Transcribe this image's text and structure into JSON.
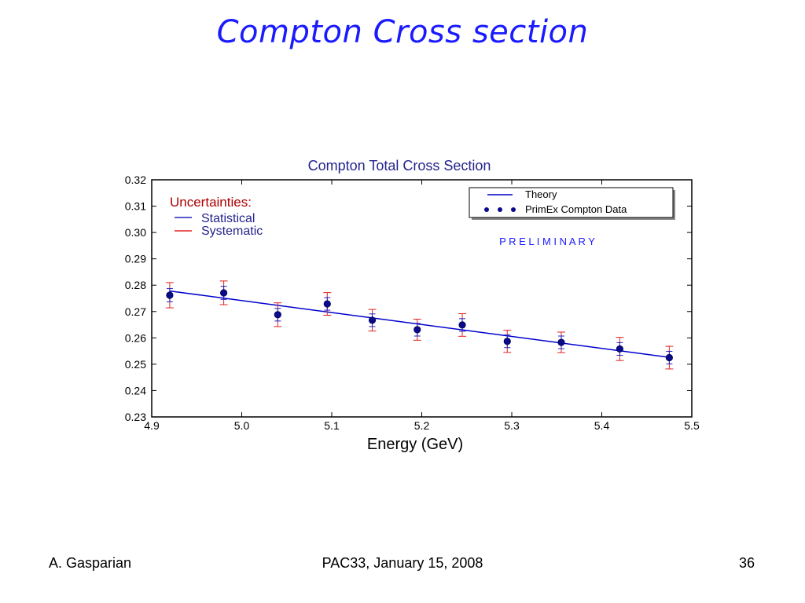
{
  "slide": {
    "title": "Compton Cross section",
    "footer_left": "A. Gasparian",
    "footer_center": "PAC33, January 15, 2008",
    "footer_right": "36"
  },
  "colors": {
    "title": "#1a1aff",
    "theory_line": "#0000cc",
    "data_marker": "#0a0a8c",
    "statistical": "#2020c0",
    "systematic": "#e02020",
    "chart_title": "#23238e",
    "preliminary": "#1a1aff",
    "uncertainties_label": "#b00000"
  },
  "chart_data": {
    "type": "scatter",
    "title": "Compton Total Cross Section",
    "xlabel": "Energy (GeV)",
    "ylabel": "",
    "xlim": [
      4.9,
      5.5
    ],
    "ylim": [
      0.23,
      0.32
    ],
    "xticks": [
      "4.9",
      "5.0",
      "5.1",
      "5.2",
      "5.3",
      "5.4",
      "5.5"
    ],
    "yticks": [
      "0.23",
      "0.24",
      "0.25",
      "0.26",
      "0.27",
      "0.28",
      "0.29",
      "0.30",
      "0.31",
      "0.32"
    ],
    "annotation": "P R E L I M I N A R Y",
    "uncertainties": {
      "heading": "Uncertainties:",
      "statistical_label": "Statistical",
      "systematic_label": "Systematic"
    },
    "legend": {
      "placement": "top-right",
      "entries": [
        "Theory",
        "PrimEx Compton Data"
      ]
    },
    "series": [
      {
        "name": "Theory",
        "kind": "line",
        "x": [
          4.92,
          5.475
        ],
        "y": [
          0.2778,
          0.2526
        ]
      },
      {
        "name": "PrimEx Compton Data",
        "kind": "points",
        "x": [
          4.92,
          4.98,
          5.04,
          5.095,
          5.145,
          5.195,
          5.245,
          5.295,
          5.355,
          5.42,
          5.475
        ],
        "y": [
          0.2762,
          0.2771,
          0.2688,
          0.2729,
          0.2667,
          0.2631,
          0.2649,
          0.2587,
          0.2583,
          0.2558,
          0.2525
        ],
        "stat_err": [
          0.0025,
          0.0025,
          0.0024,
          0.0024,
          0.0024,
          0.0024,
          0.0024,
          0.0024,
          0.0024,
          0.0024,
          0.0024
        ],
        "syst_err": [
          0.0048,
          0.0045,
          0.0045,
          0.0043,
          0.0041,
          0.004,
          0.0043,
          0.0042,
          0.0039,
          0.0044,
          0.0043
        ]
      }
    ]
  }
}
